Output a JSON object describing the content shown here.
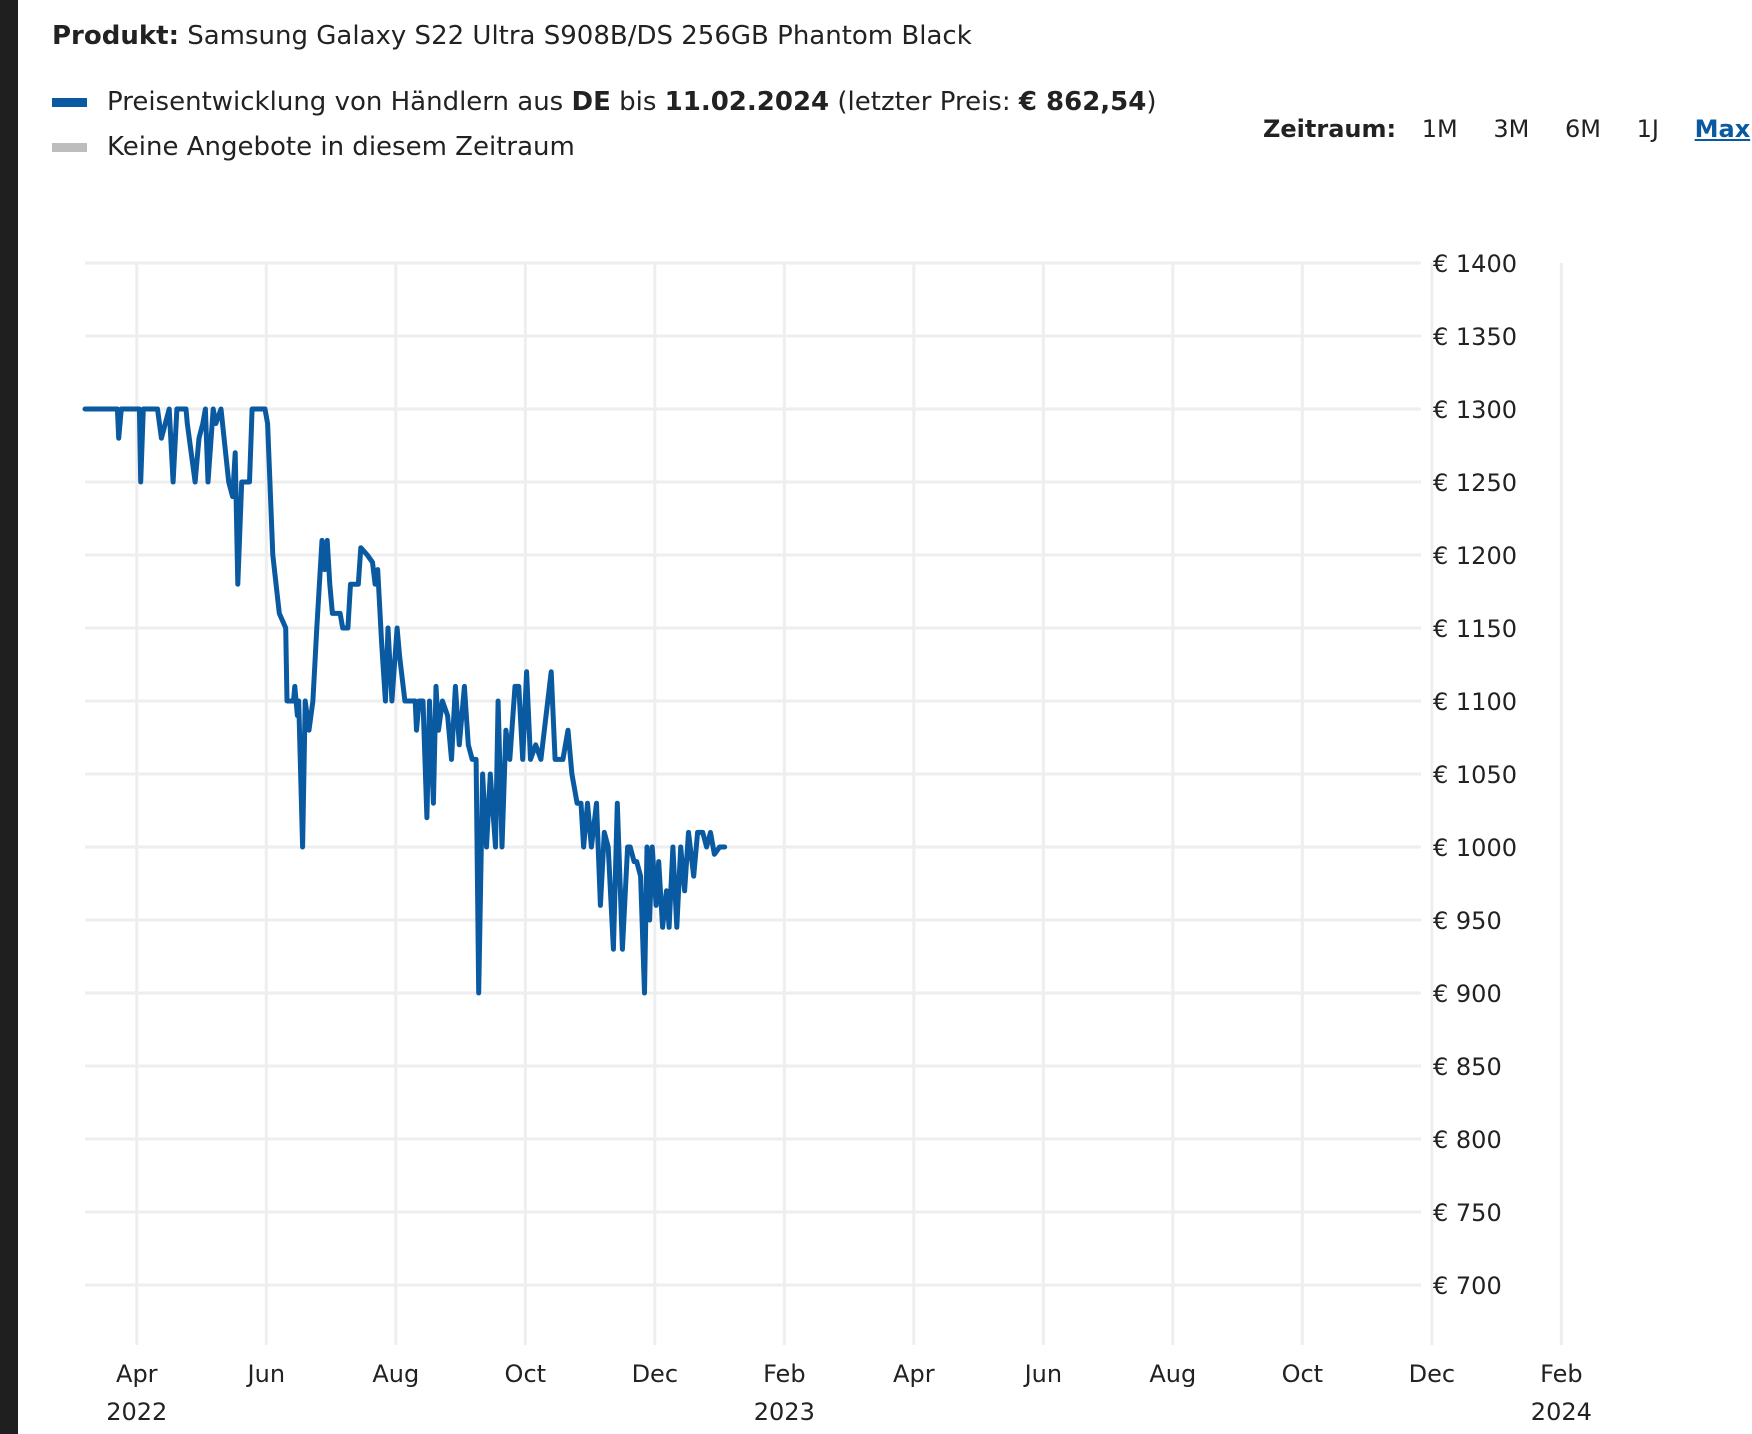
{
  "product": {
    "label": "Produkt:",
    "name": "Samsung Galaxy S22 Ultra S908B/DS 256GB Phantom Black"
  },
  "legend": {
    "series_prefix": "Preisentwicklung von Händlern aus ",
    "country": "DE",
    "until_word": " bis ",
    "date": "11.02.2024",
    "last_price_prefix": " (letzter Preis: ",
    "last_price": "€ 862,54",
    "last_price_suffix": ")",
    "no_offers": "Keine Angebote in diesem Zeitraum"
  },
  "timerange": {
    "label": "Zeitraum:",
    "options": [
      "1M",
      "3M",
      "6M",
      "1J",
      "Max"
    ],
    "selected": "Max"
  },
  "colors": {
    "series": "#0a5aa2",
    "no_offers": "#bdbdbd",
    "grid": "#eeeeee",
    "text": "#222222",
    "active_link": "#0a5aa2"
  },
  "chart_data": {
    "type": "line",
    "title": "Samsung Galaxy S22 Ultra S908B/DS 256GB Phantom Black",
    "xlabel": "",
    "ylabel": "",
    "x_unit": "months since 2022-01-01",
    "xlim": [
      2.2,
      25.35
    ],
    "ylim": [
      700,
      1400
    ],
    "y_ticks": [
      700,
      750,
      800,
      850,
      900,
      950,
      1000,
      1050,
      1100,
      1150,
      1200,
      1250,
      1300,
      1350,
      1400
    ],
    "y_tick_labels": [
      "€ 700",
      "€ 750",
      "€ 800",
      "€ 850",
      "€ 900",
      "€ 950",
      "€ 1000",
      "€ 1050",
      "€ 1100",
      "€ 1150",
      "€ 1200",
      "€ 1250",
      "€ 1300",
      "€ 1350",
      "€ 1400"
    ],
    "x_ticks": [
      {
        "x": 3,
        "label": "Apr",
        "year": "2022"
      },
      {
        "x": 5,
        "label": "Jun",
        "year": ""
      },
      {
        "x": 7,
        "label": "Aug",
        "year": ""
      },
      {
        "x": 9,
        "label": "Oct",
        "year": ""
      },
      {
        "x": 11,
        "label": "Dec",
        "year": ""
      },
      {
        "x": 13,
        "label": "Feb",
        "year": "2023"
      },
      {
        "x": 15,
        "label": "Apr",
        "year": ""
      },
      {
        "x": 17,
        "label": "Jun",
        "year": ""
      },
      {
        "x": 19,
        "label": "Aug",
        "year": ""
      },
      {
        "x": 21,
        "label": "Oct",
        "year": ""
      },
      {
        "x": 23,
        "label": "Dec",
        "year": ""
      },
      {
        "x": 25,
        "label": "Feb",
        "year": "2024"
      }
    ],
    "series": [
      {
        "name": "Preisentwicklung von Händlern aus DE",
        "points": [
          [
            2.2,
            1300
          ],
          [
            2.7,
            1300
          ],
          [
            2.72,
            1280
          ],
          [
            2.76,
            1300
          ],
          [
            3.04,
            1300
          ],
          [
            3.06,
            1250
          ],
          [
            3.1,
            1300
          ],
          [
            3.32,
            1300
          ],
          [
            3.38,
            1280
          ],
          [
            3.5,
            1300
          ],
          [
            3.56,
            1250
          ],
          [
            3.62,
            1300
          ],
          [
            3.76,
            1300
          ],
          [
            3.78,
            1290
          ],
          [
            3.9,
            1250
          ],
          [
            3.96,
            1280
          ],
          [
            4.02,
            1290
          ],
          [
            4.06,
            1300
          ],
          [
            4.1,
            1250
          ],
          [
            4.18,
            1300
          ],
          [
            4.22,
            1290
          ],
          [
            4.3,
            1300
          ],
          [
            4.42,
            1250
          ],
          [
            4.48,
            1240
          ],
          [
            4.52,
            1270
          ],
          [
            4.56,
            1180
          ],
          [
            4.62,
            1250
          ],
          [
            4.74,
            1250
          ],
          [
            4.78,
            1300
          ],
          [
            4.98,
            1300
          ],
          [
            5.02,
            1290
          ],
          [
            5.1,
            1200
          ],
          [
            5.2,
            1160
          ],
          [
            5.3,
            1150
          ],
          [
            5.32,
            1100
          ],
          [
            5.42,
            1100
          ],
          [
            5.44,
            1110
          ],
          [
            5.48,
            1090
          ],
          [
            5.5,
            1100
          ],
          [
            5.56,
            1000
          ],
          [
            5.6,
            1100
          ],
          [
            5.66,
            1080
          ],
          [
            5.72,
            1100
          ],
          [
            5.78,
            1150
          ],
          [
            5.86,
            1210
          ],
          [
            5.9,
            1190
          ],
          [
            5.94,
            1210
          ],
          [
            5.98,
            1180
          ],
          [
            6.02,
            1160
          ],
          [
            6.14,
            1160
          ],
          [
            6.18,
            1150
          ],
          [
            6.26,
            1150
          ],
          [
            6.3,
            1180
          ],
          [
            6.42,
            1180
          ],
          [
            6.46,
            1205
          ],
          [
            6.56,
            1200
          ],
          [
            6.64,
            1195
          ],
          [
            6.68,
            1180
          ],
          [
            6.72,
            1190
          ],
          [
            6.78,
            1140
          ],
          [
            6.84,
            1100
          ],
          [
            6.88,
            1150
          ],
          [
            6.94,
            1100
          ],
          [
            7.02,
            1150
          ],
          [
            7.06,
            1130
          ],
          [
            7.14,
            1100
          ],
          [
            7.3,
            1100
          ],
          [
            7.32,
            1080
          ],
          [
            7.36,
            1100
          ],
          [
            7.42,
            1100
          ],
          [
            7.48,
            1020
          ],
          [
            7.52,
            1100
          ],
          [
            7.58,
            1030
          ],
          [
            7.62,
            1110
          ],
          [
            7.66,
            1080
          ],
          [
            7.72,
            1100
          ],
          [
            7.8,
            1090
          ],
          [
            7.86,
            1060
          ],
          [
            7.92,
            1110
          ],
          [
            7.98,
            1070
          ],
          [
            8.06,
            1110
          ],
          [
            8.12,
            1070
          ],
          [
            8.18,
            1060
          ],
          [
            8.24,
            1060
          ],
          [
            8.28,
            900
          ],
          [
            8.34,
            1050
          ],
          [
            8.4,
            1000
          ],
          [
            8.46,
            1050
          ],
          [
            8.54,
            1000
          ],
          [
            8.58,
            1100
          ],
          [
            8.64,
            1000
          ],
          [
            8.7,
            1080
          ],
          [
            8.76,
            1060
          ],
          [
            8.84,
            1110
          ],
          [
            8.9,
            1110
          ],
          [
            8.96,
            1060
          ],
          [
            9.02,
            1120
          ],
          [
            9.08,
            1060
          ],
          [
            9.16,
            1070
          ],
          [
            9.24,
            1060
          ],
          [
            9.4,
            1120
          ],
          [
            9.46,
            1060
          ],
          [
            9.58,
            1060
          ],
          [
            9.66,
            1080
          ],
          [
            9.72,
            1050
          ],
          [
            9.8,
            1030
          ],
          [
            9.86,
            1030
          ],
          [
            9.9,
            1000
          ],
          [
            9.96,
            1030
          ],
          [
            10.02,
            1000
          ],
          [
            10.1,
            1030
          ],
          [
            10.16,
            960
          ],
          [
            10.22,
            1010
          ],
          [
            10.28,
            1000
          ],
          [
            10.36,
            930
          ],
          [
            10.42,
            1030
          ],
          [
            10.5,
            930
          ],
          [
            10.58,
            1000
          ],
          [
            10.62,
            1000
          ],
          [
            10.68,
            990
          ],
          [
            10.72,
            990
          ],
          [
            10.78,
            980
          ],
          [
            10.84,
            900
          ],
          [
            10.88,
            1000
          ],
          [
            10.92,
            950
          ],
          [
            10.96,
            1000
          ],
          [
            11.02,
            960
          ],
          [
            11.06,
            990
          ],
          [
            11.12,
            945
          ],
          [
            11.18,
            970
          ],
          [
            11.22,
            945
          ],
          [
            11.28,
            1000
          ],
          [
            11.34,
            945
          ],
          [
            11.4,
            1000
          ],
          [
            11.46,
            970
          ],
          [
            11.52,
            1010
          ],
          [
            11.6,
            980
          ],
          [
            11.66,
            1010
          ],
          [
            11.74,
            1010
          ],
          [
            11.8,
            1000
          ],
          [
            11.86,
            1010
          ],
          [
            11.92,
            995
          ],
          [
            12.0,
            1000
          ],
          [
            12.08,
            1000
          ]
        ]
      }
    ]
  }
}
